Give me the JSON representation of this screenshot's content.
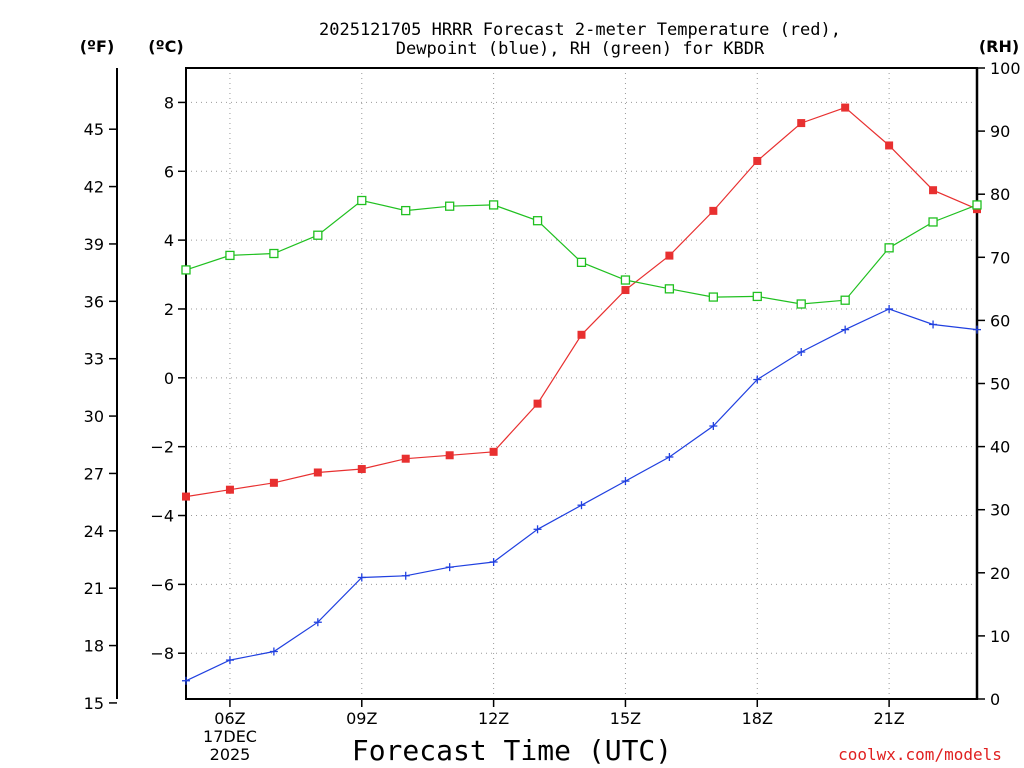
{
  "chart_data": {
    "type": "line",
    "title": "2025121705 HRRR Forecast 2-meter Temperature (red),",
    "title_line2": "Dewpoint (blue), RH (green) for KBDR",
    "xlabel": "Forecast Time (UTC)",
    "credit": "coolwx.com/models",
    "unit_fahrenheit": "(ºF)",
    "unit_celsius": "(ºC)",
    "unit_rh": "(RH)",
    "x_hours": [
      5,
      6,
      7,
      8,
      9,
      10,
      11,
      12,
      13,
      14,
      15,
      16,
      17,
      18,
      19,
      20,
      21,
      22,
      23
    ],
    "x_ticks": [
      {
        "hour": 6,
        "label": "06Z"
      },
      {
        "hour": 9,
        "label": "09Z"
      },
      {
        "hour": 12,
        "label": "12Z"
      },
      {
        "hour": 15,
        "label": "15Z"
      },
      {
        "hour": 18,
        "label": "18Z"
      },
      {
        "hour": 21,
        "label": "21Z"
      }
    ],
    "date_label_1": "17DEC",
    "date_label_2": "2025",
    "celsius_range": [
      -9.33,
      9.0
    ],
    "celsius_ticks": [
      "-8",
      "-6",
      "-4",
      "-2",
      "0",
      "2",
      "4",
      "6",
      "8"
    ],
    "fahrenheit_ticks": [
      "15",
      "18",
      "21",
      "24",
      "27",
      "30",
      "33",
      "36",
      "39",
      "42",
      "45"
    ],
    "rh_range": [
      0,
      100
    ],
    "rh_ticks": [
      "0",
      "10",
      "20",
      "30",
      "40",
      "50",
      "60",
      "70",
      "80",
      "90",
      "100"
    ],
    "series": [
      {
        "name": "Temperature",
        "color": "#e83030",
        "marker": "filled-square",
        "values": [
          -3.45,
          -3.25,
          -3.05,
          -2.75,
          -2.65,
          -2.35,
          -2.25,
          -2.15,
          -0.75,
          1.25,
          2.55,
          3.55,
          4.85,
          6.3,
          7.4,
          7.85,
          6.75,
          5.45,
          4.9
        ]
      },
      {
        "name": "Dewpoint",
        "color": "#2040e0",
        "marker": "plus",
        "values": [
          -8.8,
          -8.2,
          -7.95,
          -7.1,
          -5.8,
          -5.75,
          -5.5,
          -5.35,
          -4.4,
          -3.7,
          -3.0,
          -2.3,
          -1.4,
          -0.05,
          0.75,
          1.4,
          2.0,
          1.55,
          1.4
        ]
      },
      {
        "name": "RH",
        "color": "#20c020",
        "marker": "open-square",
        "axis": "right",
        "values": [
          68,
          70.3,
          70.6,
          73.5,
          79,
          77.4,
          78.1,
          78.3,
          75.8,
          69.2,
          66.4,
          65,
          63.7,
          63.8,
          62.6,
          63.2,
          71.5,
          75.6,
          78.3
        ]
      }
    ]
  }
}
